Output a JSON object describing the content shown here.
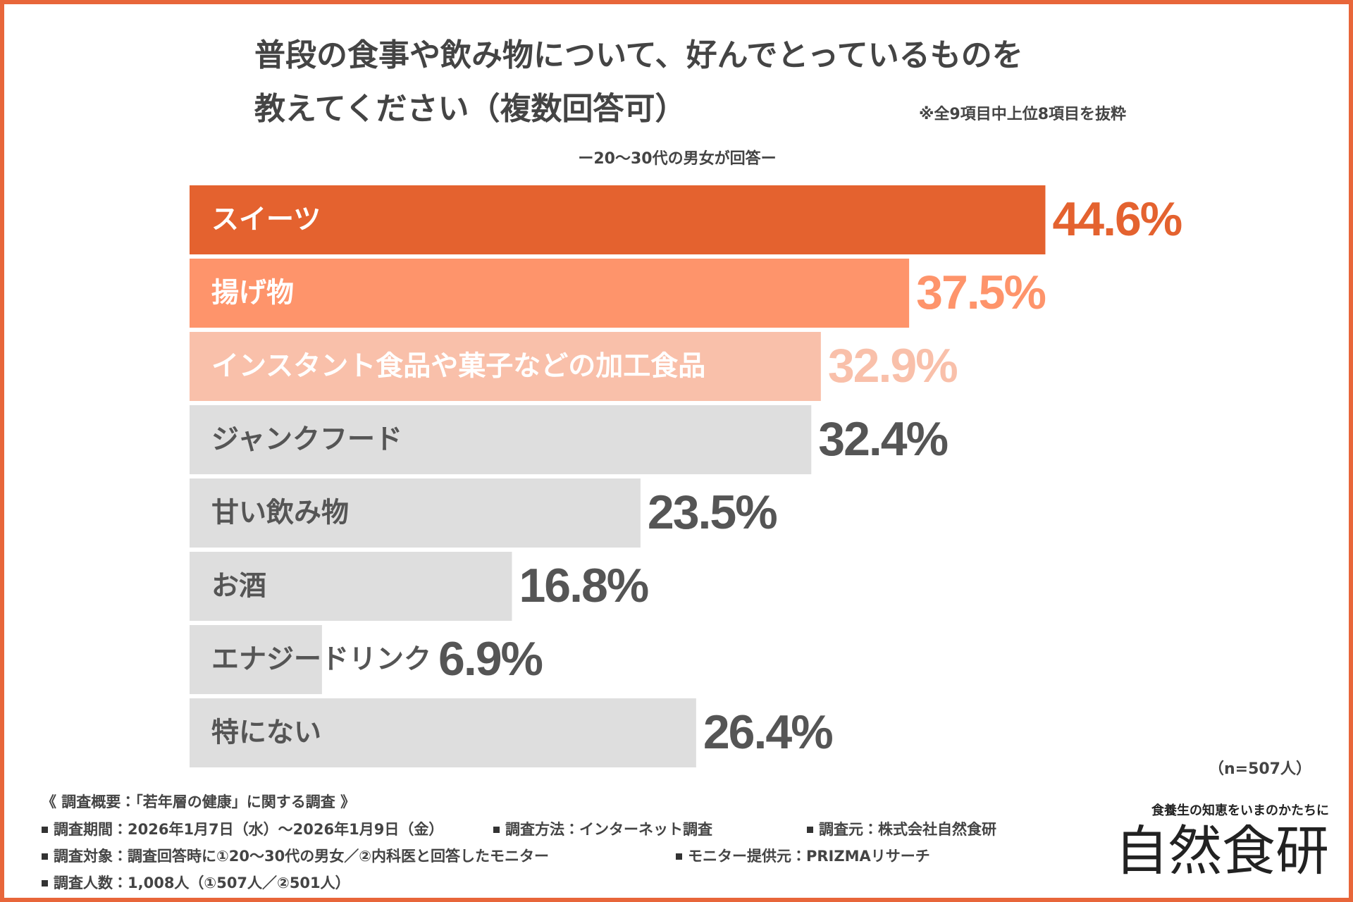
{
  "chart_data": {
    "type": "bar",
    "title": [
      "普段の食事や飲み物について、好んでとっているものを",
      "教えてください（複数回答可）"
    ],
    "note": "※全9項目中上位8項目を抜粋",
    "subtitle": "ー20〜30代の男女が回答ー",
    "categories": [
      "スイーツ",
      "揚げ物",
      "インスタント食品や菓子などの加工食品",
      "ジャンクフード",
      "甘い飲み物",
      "お酒",
      "エナジードリンク",
      "特にない"
    ],
    "values": [
      44.6,
      37.5,
      32.9,
      32.4,
      23.5,
      16.8,
      6.9,
      26.4
    ],
    "value_labels": [
      "44.6%",
      "37.5%",
      "32.9%",
      "32.4%",
      "23.5%",
      "16.8%",
      "6.9%",
      "26.4%"
    ],
    "colors": [
      "#e4622f",
      "#fe946b",
      "#f9c0aa",
      "#dedede",
      "#dedede",
      "#dedede",
      "#dedede",
      "#dedede"
    ],
    "category_label_colors": [
      "#ffffff",
      "#ffffff",
      "#ffffff",
      "#555555",
      "#555555",
      "#555555",
      "#555555",
      "#555555"
    ],
    "value_label_colors": [
      "#e4622f",
      "#fe946b",
      "#f9c0aa",
      "#555555",
      "#555555",
      "#555555",
      "#555555",
      "#555555"
    ],
    "sample_size": "（n=507人）"
  },
  "footer": {
    "heading": "《 調査概要：「若年層の健康」に関する調査 》",
    "rows": [
      [
        "調査期間：2026年1月7日（水）〜2026年1月9日（金）",
        "調査方法：インターネット調査",
        "調査元：株式会社自然食研"
      ],
      [
        "調査対象：調査回答時に①20〜30代の男女／②内科医と回答したモニター",
        "モニター提供元：PRIZMAリサーチ"
      ],
      [
        "調査人数：1,008人（①507人／②501人）"
      ]
    ]
  },
  "brand": {
    "tagline": "食養生の知恵をいまのかたちに",
    "name": "自然食研"
  }
}
